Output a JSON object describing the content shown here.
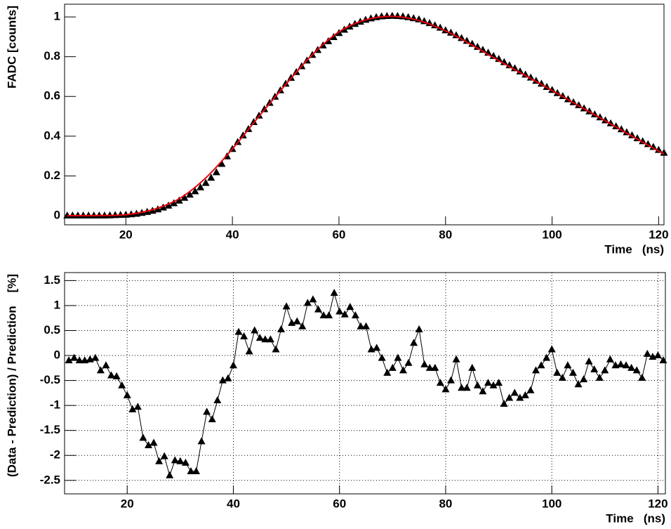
{
  "chart_data": [
    {
      "type": "scatter",
      "ylabel": "FADC [counts]",
      "xlabel": "Time   (ns)",
      "xlim": [
        8.5,
        121
      ],
      "ylim": [
        -0.046,
        1.064
      ],
      "xticks": [
        20,
        40,
        60,
        80,
        100,
        120
      ],
      "yticks": [
        0,
        0.2,
        0.4,
        0.6,
        0.8,
        1
      ],
      "grid": false,
      "x": [
        9,
        10,
        11,
        12,
        13,
        14,
        15,
        16,
        17,
        18,
        19,
        20,
        21,
        22,
        23,
        24,
        25,
        26,
        27,
        28,
        29,
        30,
        31,
        32,
        33,
        34,
        35,
        36,
        37,
        38,
        39,
        40,
        41,
        42,
        43,
        44,
        45,
        46,
        47,
        48,
        49,
        50,
        51,
        52,
        53,
        54,
        55,
        56,
        57,
        58,
        59,
        60,
        61,
        62,
        63,
        64,
        65,
        66,
        67,
        68,
        69,
        70,
        71,
        72,
        73,
        74,
        75,
        76,
        77,
        78,
        79,
        80,
        81,
        82,
        83,
        84,
        85,
        86,
        87,
        88,
        89,
        90,
        91,
        92,
        93,
        94,
        95,
        96,
        97,
        98,
        99,
        100,
        101,
        102,
        103,
        104,
        105,
        106,
        107,
        108,
        109,
        110,
        111,
        112,
        113,
        114,
        115,
        116,
        117,
        118,
        119,
        120,
        121
      ],
      "series": [
        {
          "color": "#000000",
          "marker": "triangle",
          "line": false,
          "values": [
            0,
            0,
            0,
            0,
            0,
            0,
            0,
            0,
            0.001,
            0.002,
            0.003,
            0.004,
            0.006,
            0.009,
            0.013,
            0.018,
            0.024,
            0.031,
            0.04,
            0.05,
            0.062,
            0.075,
            0.089,
            0.105,
            0.122,
            0.142,
            0.164,
            0.19,
            0.218,
            0.26,
            0.298,
            0.335,
            0.37,
            0.403,
            0.435,
            0.47,
            0.503,
            0.535,
            0.567,
            0.598,
            0.63,
            0.663,
            0.693,
            0.722,
            0.751,
            0.78,
            0.808,
            0.833,
            0.856,
            0.877,
            0.898,
            0.918,
            0.935,
            0.951,
            0.964,
            0.975,
            0.985,
            0.992,
            0.998,
            1.002,
            1.004,
            1.005,
            1.004,
            1.002,
            0.998,
            0.993,
            0.987,
            0.978,
            0.968,
            0.957,
            0.945,
            0.932,
            0.92,
            0.907,
            0.893,
            0.879,
            0.864,
            0.849,
            0.834,
            0.819,
            0.803,
            0.788,
            0.772,
            0.756,
            0.741,
            0.725,
            0.709,
            0.694,
            0.678,
            0.663,
            0.647,
            0.632,
            0.616,
            0.601,
            0.585,
            0.57,
            0.555,
            0.539,
            0.524,
            0.509,
            0.494,
            0.479,
            0.464,
            0.449,
            0.434,
            0.419,
            0.404,
            0.389,
            0.374,
            0.359,
            0.345,
            0.33,
            0.316
          ]
        },
        {
          "color": "#e8000b",
          "line": true,
          "smooth": true,
          "x": [
            9,
            15,
            20,
            25,
            30,
            35,
            40,
            45,
            50,
            55,
            60,
            65,
            70,
            75,
            80,
            85,
            90,
            95,
            100,
            105,
            110,
            115,
            120,
            121
          ],
          "values": [
            0,
            0.001,
            0.005,
            0.03,
            0.085,
            0.19,
            0.336,
            0.5,
            0.66,
            0.81,
            0.925,
            0.985,
            1.003,
            0.982,
            0.93,
            0.858,
            0.78,
            0.705,
            0.63,
            0.553,
            0.477,
            0.4,
            0.325,
            0.31
          ]
        }
      ]
    },
    {
      "type": "scatter",
      "ylabel": "(Data - Prediction) / Prediction    [%]",
      "xlabel": "Time   (ns)",
      "xlim": [
        8.2,
        121.4
      ],
      "ylim": [
        -2.77,
        1.66
      ],
      "xticks": [
        20,
        40,
        60,
        80,
        100,
        120
      ],
      "yticks": [
        -2.5,
        -2,
        -1.5,
        -1,
        -0.5,
        0,
        0.5,
        1,
        1.5
      ],
      "grid": true,
      "x": [
        9,
        10,
        11,
        12,
        13,
        14,
        15,
        16,
        17,
        18,
        19,
        20,
        21,
        22,
        23,
        24,
        25,
        26,
        27,
        28,
        29,
        30,
        31,
        32,
        33,
        34,
        35,
        36,
        37,
        38,
        39,
        40,
        41,
        42,
        43,
        44,
        45,
        46,
        47,
        48,
        49,
        50,
        51,
        52,
        53,
        54,
        55,
        56,
        57,
        58,
        59,
        60,
        61,
        62,
        63,
        64,
        65,
        66,
        67,
        68,
        69,
        70,
        71,
        72,
        73,
        74,
        75,
        76,
        77,
        78,
        79,
        80,
        81,
        82,
        83,
        84,
        85,
        86,
        87,
        88,
        89,
        90,
        91,
        92,
        93,
        94,
        95,
        96,
        97,
        98,
        99,
        100,
        101,
        102,
        103,
        104,
        105,
        106,
        107,
        108,
        109,
        110,
        111,
        112,
        113,
        114,
        115,
        116,
        117,
        118,
        119,
        120,
        121
      ],
      "series": [
        {
          "color": "#000000",
          "marker": "triangle",
          "line": true,
          "values": [
            -0.1,
            -0.05,
            -0.1,
            -0.1,
            -0.08,
            -0.05,
            -0.3,
            -0.2,
            -0.4,
            -0.42,
            -0.6,
            -0.8,
            -1.08,
            -1.03,
            -1.65,
            -1.8,
            -1.75,
            -2.12,
            -2.02,
            -2.4,
            -2.1,
            -2.12,
            -2.15,
            -2.32,
            -2.32,
            -1.72,
            -1.13,
            -1.28,
            -0.9,
            -0.5,
            -0.46,
            -0.2,
            0.47,
            0.38,
            0.08,
            0.5,
            0.35,
            0.32,
            0.32,
            0.12,
            0.52,
            0.98,
            0.65,
            0.68,
            0.58,
            1.05,
            1.12,
            0.92,
            0.8,
            0.8,
            1.25,
            0.88,
            0.82,
            0.97,
            0.8,
            0.58,
            0.58,
            0.12,
            0.15,
            -0.05,
            -0.35,
            -0.25,
            -0.05,
            -0.3,
            -0.15,
            0.25,
            0.52,
            -0.18,
            -0.25,
            -0.25,
            -0.55,
            -0.68,
            -0.5,
            -0.08,
            -0.65,
            -0.65,
            -0.25,
            -0.6,
            -0.72,
            -0.55,
            -0.6,
            -0.55,
            -0.97,
            -0.85,
            -0.75,
            -0.85,
            -0.8,
            -0.7,
            -0.3,
            -0.2,
            -0.05,
            0.12,
            -0.35,
            -0.45,
            -0.2,
            -0.35,
            -0.58,
            -0.48,
            -0.12,
            -0.28,
            -0.45,
            -0.3,
            -0.08,
            -0.2,
            -0.18,
            -0.2,
            -0.25,
            -0.3,
            -0.45,
            0.03,
            -0.03,
            0,
            -0.1
          ]
        }
      ]
    }
  ]
}
